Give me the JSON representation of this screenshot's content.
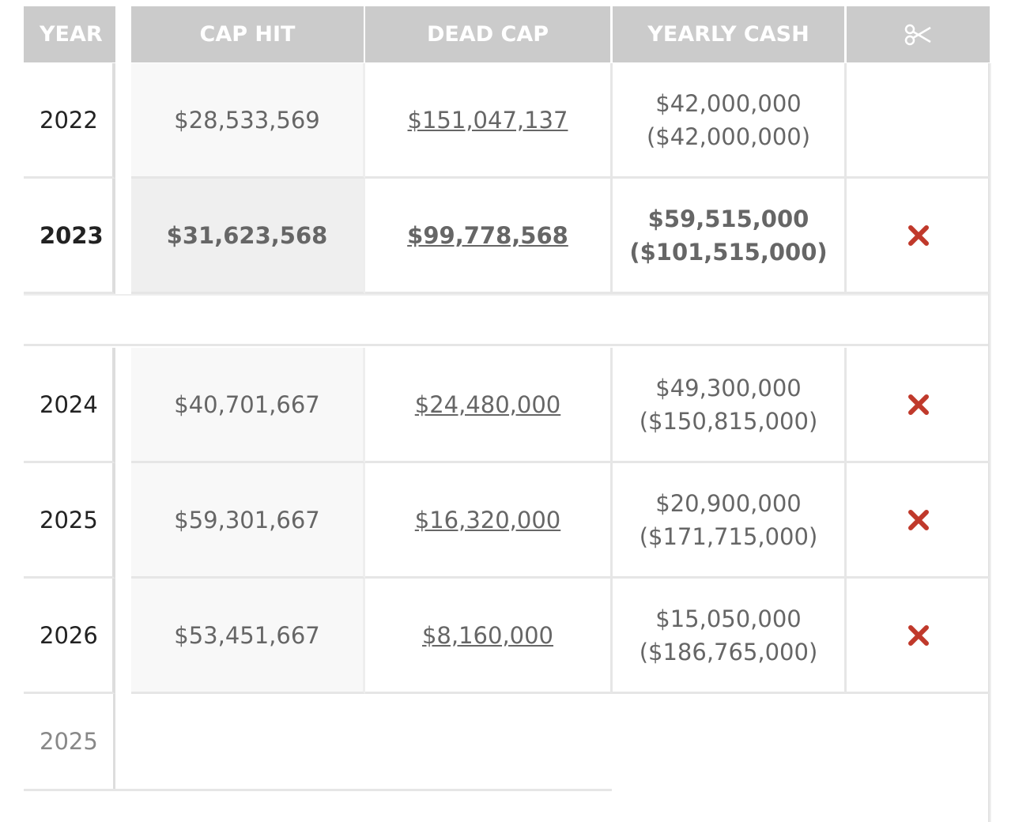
{
  "header": {
    "columns": [
      "YEAR",
      "CAP HIT",
      "DEAD CAP",
      "YEARLY CASH"
    ]
  },
  "rows": [
    {
      "year": "2022",
      "cap_hit": "$28,533,569",
      "dead_cap": "$151,047,137",
      "yearly_cash": "$42,000,000",
      "cumulative_cash": "($42,000,000)"
    },
    {
      "year": "2023",
      "cap_hit": "$31,623,568",
      "dead_cap": "$99,778,568",
      "yearly_cash": "$59,515,000",
      "cumulative_cash": "($101,515,000)"
    },
    {
      "year": "2024",
      "cap_hit": "$40,701,667",
      "dead_cap": "$24,480,000",
      "yearly_cash": "$49,300,000",
      "cumulative_cash": "($150,815,000)"
    },
    {
      "year": "2025",
      "cap_hit": "$59,301,667",
      "dead_cap": "$16,320,000",
      "yearly_cash": "$20,900,000",
      "cumulative_cash": "($171,715,000)"
    },
    {
      "year": "2026",
      "cap_hit": "$53,451,667",
      "dead_cap": "$8,160,000",
      "yearly_cash": "$15,050,000",
      "cumulative_cash": "($186,765,000)"
    }
  ],
  "footer_year": "2025"
}
